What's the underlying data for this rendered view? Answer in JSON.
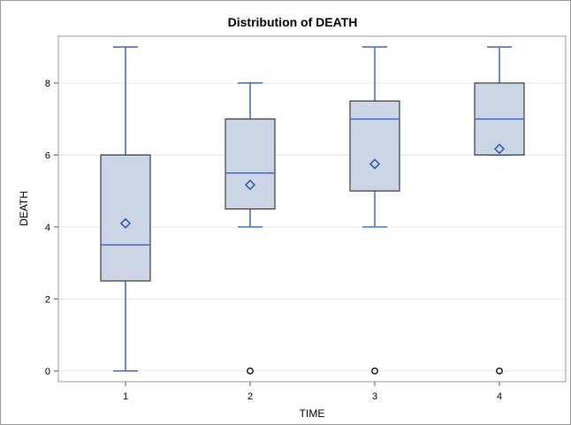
{
  "chart_data": {
    "type": "box",
    "title": "Distribution of DEATH",
    "xlabel": "TIME",
    "ylabel": "DEATH",
    "categories": [
      "1",
      "2",
      "3",
      "4"
    ],
    "yticks": [
      "0",
      "2",
      "4",
      "6",
      "8"
    ],
    "ylim": [
      -0.3,
      9.3
    ],
    "grid": true,
    "boxes": [
      {
        "category": "1",
        "whisker_low": 0,
        "q1": 2.5,
        "median": 3.5,
        "q3": 6,
        "whisker_high": 9,
        "mean": 4.1,
        "outliers": []
      },
      {
        "category": "2",
        "whisker_low": 4,
        "q1": 4.5,
        "median": 5.5,
        "q3": 7,
        "whisker_high": 8,
        "mean": 5.17,
        "outliers": [
          0
        ]
      },
      {
        "category": "3",
        "whisker_low": 4,
        "q1": 5,
        "median": 7,
        "q3": 7.5,
        "whisker_high": 9,
        "mean": 5.75,
        "outliers": [
          0
        ]
      },
      {
        "category": "4",
        "whisker_low": 6,
        "q1": 6,
        "median": 7,
        "q3": 8,
        "whisker_high": 9,
        "mean": 6.17,
        "outliers": [
          0
        ]
      }
    ],
    "colors": {
      "box_fill": "#cbd5e6",
      "box_stroke": "#3b3b3b",
      "whisker": "#4a72c4",
      "median": "#4a72c4",
      "mean_marker": "#2f55a8",
      "outlier": "#222222",
      "grid": "#e6e6e6",
      "plot_border": "#9a9a9a"
    }
  }
}
